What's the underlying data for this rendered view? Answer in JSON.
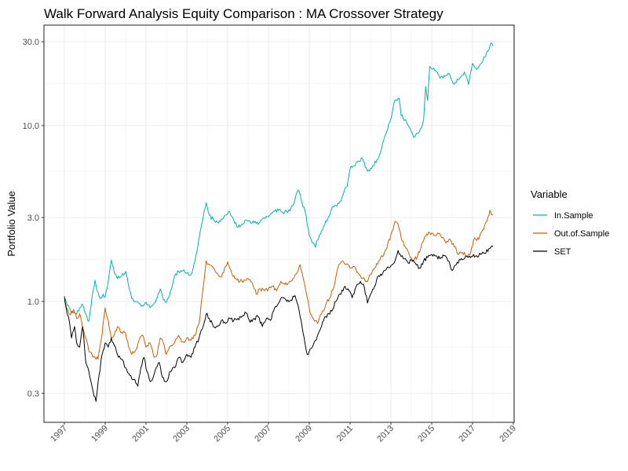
{
  "chart_data": {
    "type": "line",
    "title": "Walk Forward Analysis Equity Comparison : MA Crossover Strategy",
    "xlabel": "",
    "ylabel": "Portfolio Value",
    "yscale": "log10",
    "xlim": [
      1996.5,
      2019.0
    ],
    "ylim": [
      0.2,
      40
    ],
    "x_ticks": [
      1997,
      1999,
      2001,
      2003,
      2005,
      2007,
      2009,
      2011,
      2013,
      2015,
      2017,
      2019
    ],
    "x_tick_labels": [
      "1997",
      "1999",
      "2001",
      "2003",
      "2005",
      "2007",
      "2009",
      "2011",
      "2013",
      "2015",
      "2017",
      "2019"
    ],
    "y_ticks": [
      0.3,
      1.0,
      3.0,
      10.0,
      30.0
    ],
    "y_tick_labels": [
      "0.3",
      "1.0",
      "3.0",
      "10.0",
      "30.0"
    ],
    "grid": true,
    "legend": {
      "title": "Variable",
      "position": "right"
    },
    "series": [
      {
        "name": "In.Sample",
        "color": "#00b3a6",
        "x": [
          1997.0,
          1997.15,
          1997.3,
          1997.45,
          1997.6,
          1997.75,
          1997.9,
          1998.05,
          1998.2,
          1998.35,
          1998.5,
          1998.6,
          1998.75,
          1998.9,
          1999.0,
          1999.15,
          1999.3,
          1999.45,
          1999.6,
          1999.8,
          2000.0,
          2000.15,
          2000.3,
          2000.5,
          2000.7,
          2000.85,
          2001.0,
          2001.2,
          2001.4,
          2001.55,
          2001.7,
          2001.85,
          2002.0,
          2002.2,
          2002.4,
          2002.6,
          2002.8,
          2003.0,
          2003.2,
          2003.4,
          2003.6,
          2003.8,
          2003.95,
          2004.1,
          2004.3,
          2004.5,
          2004.7,
          2004.9,
          2005.1,
          2005.3,
          2005.5,
          2005.7,
          2005.9,
          2006.1,
          2006.3,
          2006.5,
          2006.7,
          2006.9,
          2007.1,
          2007.3,
          2007.5,
          2007.7,
          2007.9,
          2008.1,
          2008.3,
          2008.45,
          2008.6,
          2008.8,
          2009.0,
          2009.15,
          2009.3,
          2009.5,
          2009.7,
          2009.9,
          2010.1,
          2010.3,
          2010.5,
          2010.7,
          2010.85,
          2011.0,
          2011.2,
          2011.4,
          2011.6,
          2011.85,
          2012.1,
          2012.4,
          2012.7,
          2012.95,
          2013.2,
          2013.4,
          2013.5,
          2013.7,
          2013.85,
          2014.1,
          2014.3,
          2014.5,
          2014.6,
          2014.7,
          2014.8,
          2014.9,
          2015.1,
          2015.4,
          2015.6,
          2015.8,
          2016.1,
          2016.35,
          2016.6,
          2016.8,
          2017.0,
          2017.2,
          2017.4,
          2017.6,
          2017.8,
          2017.9,
          2018.0
        ],
        "values": [
          1.04,
          0.95,
          0.89,
          0.86,
          0.85,
          0.92,
          0.96,
          0.85,
          0.77,
          1.05,
          1.32,
          1.15,
          1.04,
          1.1,
          1.06,
          1.3,
          1.72,
          1.45,
          1.35,
          1.4,
          1.48,
          1.22,
          1.04,
          1.0,
          0.97,
          0.94,
          0.99,
          0.92,
          0.98,
          1.05,
          1.18,
          1.02,
          0.99,
          1.15,
          1.4,
          1.48,
          1.49,
          1.45,
          1.42,
          1.7,
          2.3,
          3.0,
          3.65,
          3.1,
          2.91,
          2.82,
          2.95,
          3.1,
          3.23,
          2.9,
          2.63,
          2.75,
          2.91,
          2.85,
          2.8,
          2.74,
          2.95,
          3.05,
          3.13,
          3.25,
          3.29,
          3.2,
          3.23,
          3.4,
          3.8,
          4.3,
          3.8,
          3.23,
          2.37,
          2.15,
          2.03,
          2.4,
          2.68,
          2.95,
          3.39,
          3.5,
          3.7,
          4.2,
          4.5,
          5.68,
          5.9,
          6.3,
          6.5,
          5.5,
          5.9,
          6.6,
          8.7,
          10.5,
          14.0,
          14.3,
          11.4,
          10.8,
          10.0,
          8.6,
          9.0,
          9.7,
          10.7,
          16.7,
          13.9,
          21.7,
          21.2,
          18.6,
          19.3,
          19.9,
          17.2,
          18.5,
          20.2,
          17.1,
          22.6,
          20.9,
          22.5,
          24.5,
          27.0,
          29.5,
          28.3
        ]
      },
      {
        "name": "Out.of.Sample",
        "color": "#cc5c00",
        "x": [
          1997.0,
          1997.15,
          1997.3,
          1997.45,
          1997.6,
          1997.75,
          1997.9,
          1998.05,
          1998.2,
          1998.35,
          1998.5,
          1998.65,
          1998.8,
          1999.0,
          1999.15,
          1999.3,
          1999.45,
          1999.6,
          1999.8,
          2000.0,
          2000.15,
          2000.3,
          2000.5,
          2000.7,
          2000.85,
          2001.0,
          2001.2,
          2001.4,
          2001.55,
          2001.7,
          2001.85,
          2002.0,
          2002.2,
          2002.4,
          2002.6,
          2002.8,
          2003.0,
          2003.2,
          2003.4,
          2003.6,
          2003.8,
          2003.95,
          2004.1,
          2004.3,
          2004.5,
          2004.7,
          2004.85,
          2005.0,
          2005.2,
          2005.4,
          2005.6,
          2005.8,
          2006.0,
          2006.2,
          2006.4,
          2006.6,
          2006.8,
          2007.0,
          2007.2,
          2007.4,
          2007.6,
          2007.8,
          2008.0,
          2008.2,
          2008.4,
          2008.55,
          2008.7,
          2008.9,
          2009.05,
          2009.2,
          2009.4,
          2009.6,
          2009.8,
          2010.0,
          2010.2,
          2010.4,
          2010.6,
          2010.8,
          2011.0,
          2011.2,
          2011.4,
          2011.6,
          2011.8,
          2012.0,
          2012.2,
          2012.4,
          2012.6,
          2012.8,
          2013.0,
          2013.2,
          2013.35,
          2013.5,
          2013.7,
          2013.9,
          2014.1,
          2014.3,
          2014.5,
          2014.7,
          2014.9,
          2015.1,
          2015.3,
          2015.5,
          2015.7,
          2015.9,
          2016.1,
          2016.3,
          2016.5,
          2016.7,
          2016.9,
          2017.1,
          2017.3,
          2017.5,
          2017.7,
          2017.85,
          2018.0
        ],
        "values": [
          1.02,
          0.9,
          0.84,
          0.9,
          0.8,
          0.85,
          0.7,
          0.62,
          0.52,
          0.5,
          0.48,
          0.47,
          0.6,
          0.92,
          0.78,
          0.62,
          0.65,
          0.72,
          0.67,
          0.66,
          0.55,
          0.5,
          0.53,
          0.62,
          0.64,
          0.55,
          0.58,
          0.48,
          0.5,
          0.62,
          0.58,
          0.5,
          0.56,
          0.58,
          0.64,
          0.59,
          0.62,
          0.6,
          0.64,
          0.75,
          1.2,
          1.7,
          1.62,
          1.55,
          1.45,
          1.38,
          1.55,
          1.68,
          1.45,
          1.35,
          1.3,
          1.32,
          1.35,
          1.28,
          1.1,
          1.18,
          1.15,
          1.18,
          1.22,
          1.15,
          1.3,
          1.25,
          1.28,
          1.35,
          1.45,
          1.62,
          1.35,
          1.05,
          0.85,
          0.8,
          0.75,
          0.85,
          0.95,
          1.05,
          1.2,
          1.55,
          1.7,
          1.62,
          1.55,
          1.58,
          1.45,
          1.35,
          1.3,
          1.42,
          1.55,
          1.7,
          1.8,
          2.0,
          2.4,
          2.85,
          2.75,
          2.3,
          2.05,
          1.85,
          1.72,
          1.8,
          2.1,
          2.35,
          2.45,
          2.38,
          2.45,
          2.3,
          2.15,
          2.25,
          2.05,
          1.85,
          1.9,
          1.82,
          1.88,
          2.3,
          2.25,
          2.55,
          2.85,
          3.3,
          3.1
        ]
      },
      {
        "name": "SET",
        "color": "#000000",
        "x": [
          1997.0,
          1997.1,
          1997.2,
          1997.35,
          1997.5,
          1997.6,
          1997.75,
          1997.9,
          1998.05,
          1998.2,
          1998.35,
          1998.45,
          1998.55,
          1998.7,
          1998.85,
          1999.0,
          1999.15,
          1999.3,
          1999.45,
          1999.6,
          1999.8,
          2000.0,
          2000.2,
          2000.4,
          2000.6,
          2000.75,
          2000.9,
          2001.05,
          2001.2,
          2001.35,
          2001.5,
          2001.65,
          2001.8,
          2002.0,
          2002.2,
          2002.4,
          2002.6,
          2002.8,
          2003.0,
          2003.2,
          2003.4,
          2003.6,
          2003.8,
          2003.95,
          2004.1,
          2004.3,
          2004.5,
          2004.7,
          2004.9,
          2005.1,
          2005.3,
          2005.5,
          2005.7,
          2005.9,
          2006.1,
          2006.3,
          2006.5,
          2006.7,
          2006.9,
          2007.1,
          2007.3,
          2007.5,
          2007.7,
          2007.9,
          2008.1,
          2008.3,
          2008.45,
          2008.6,
          2008.75,
          2008.9,
          2009.0,
          2009.15,
          2009.3,
          2009.5,
          2009.7,
          2009.9,
          2010.1,
          2010.3,
          2010.5,
          2010.7,
          2010.9,
          2011.1,
          2011.3,
          2011.5,
          2011.7,
          2011.85,
          2012.0,
          2012.2,
          2012.4,
          2012.6,
          2012.8,
          2013.0,
          2013.2,
          2013.35,
          2013.5,
          2013.7,
          2013.85,
          2014.0,
          2014.2,
          2014.4,
          2014.6,
          2014.8,
          2015.0,
          2015.2,
          2015.4,
          2015.6,
          2015.8,
          2016.0,
          2016.2,
          2016.4,
          2016.6,
          2016.8,
          2017.0,
          2017.2,
          2017.4,
          2017.6,
          2017.8,
          2018.0
        ],
        "values": [
          1.07,
          0.9,
          0.82,
          0.62,
          0.72,
          0.58,
          0.55,
          0.72,
          0.45,
          0.4,
          0.33,
          0.29,
          0.27,
          0.38,
          0.5,
          0.58,
          0.55,
          0.62,
          0.56,
          0.5,
          0.47,
          0.42,
          0.38,
          0.36,
          0.33,
          0.42,
          0.48,
          0.4,
          0.35,
          0.37,
          0.42,
          0.45,
          0.37,
          0.35,
          0.4,
          0.42,
          0.48,
          0.45,
          0.5,
          0.48,
          0.55,
          0.62,
          0.72,
          0.85,
          0.8,
          0.72,
          0.72,
          0.78,
          0.75,
          0.8,
          0.78,
          0.8,
          0.82,
          0.86,
          0.76,
          0.8,
          0.82,
          0.72,
          0.8,
          0.78,
          0.92,
          0.98,
          1.05,
          1.0,
          1.02,
          1.08,
          0.95,
          0.78,
          0.62,
          0.5,
          0.52,
          0.55,
          0.6,
          0.68,
          0.78,
          0.85,
          0.88,
          1.0,
          1.1,
          1.2,
          1.18,
          1.05,
          1.22,
          1.3,
          1.2,
          0.98,
          1.1,
          1.22,
          1.4,
          1.45,
          1.55,
          1.6,
          1.7,
          1.95,
          1.8,
          1.75,
          1.65,
          1.72,
          1.65,
          1.55,
          1.7,
          1.78,
          1.85,
          1.82,
          1.75,
          1.82,
          1.7,
          1.5,
          1.62,
          1.72,
          1.75,
          1.78,
          1.8,
          1.82,
          1.85,
          1.88,
          2.0,
          2.05
        ]
      }
    ]
  }
}
